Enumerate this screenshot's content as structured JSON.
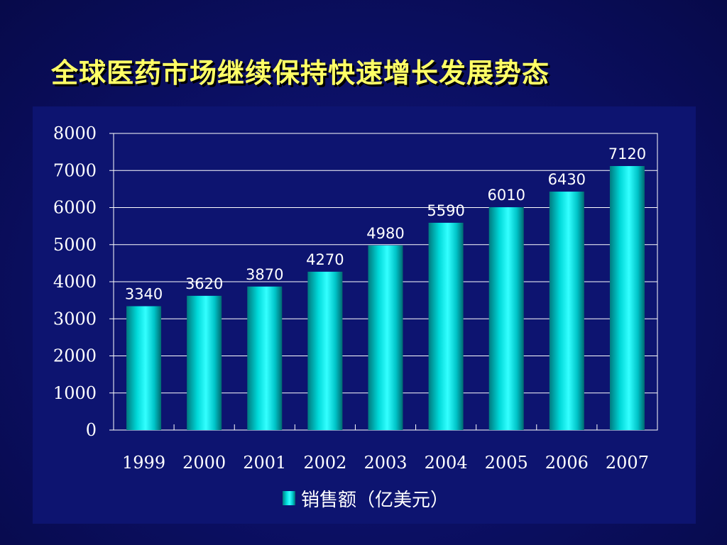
{
  "title": "全球医药市场继续保持快速增长发展势态",
  "chart_data": {
    "type": "bar",
    "categories": [
      "1999",
      "2000",
      "2001",
      "2002",
      "2003",
      "2004",
      "2005",
      "2006",
      "2007"
    ],
    "series": [
      {
        "name": "销售额（亿美元）",
        "values": [
          3340,
          3620,
          3870,
          4270,
          4980,
          5590,
          6010,
          6430,
          7120
        ]
      }
    ],
    "ylim": [
      0,
      8000
    ],
    "yticks": [
      0,
      1000,
      2000,
      3000,
      4000,
      5000,
      6000,
      7000,
      8000
    ],
    "data_labels": true,
    "grid": true,
    "legend_position": "bottom",
    "colors": {
      "bar": "#00e0e0",
      "background": "#0b0f63",
      "title": "#ffff66",
      "text": "#ffffff"
    }
  }
}
